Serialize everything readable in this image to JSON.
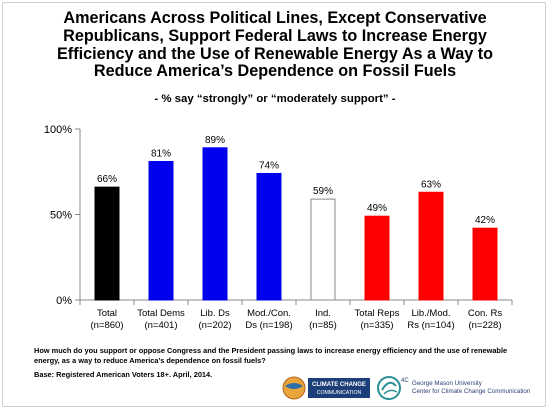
{
  "title_lines": [
    "Americans Across Political Lines, Except Conservative",
    "Republicans, Support Federal Laws to Increase Energy",
    "Efficiency and the Use of Renewable Energy As a Way to",
    "Reduce America’s Dependence on Fossil Fuels"
  ],
  "subtitle": "- % say “strongly” or “moderately support” -",
  "chart_data": {
    "type": "bar",
    "categories": [
      {
        "line1": "Total",
        "line2": "(n=860)"
      },
      {
        "line1": "Total Dems",
        "line2": "(n=401)"
      },
      {
        "line1": "Lib. Ds",
        "line2": "(n=202)"
      },
      {
        "line1": "Mod./Con.",
        "line2": "Ds (n=198)"
      },
      {
        "line1": "Ind.",
        "line2": "(n=85)"
      },
      {
        "line1": "Total Reps",
        "line2": "(n=335)"
      },
      {
        "line1": "Lib./Mod.",
        "line2": "Rs (n=104)"
      },
      {
        "line1": "Con. Rs",
        "line2": "(n=228)"
      }
    ],
    "values": [
      66,
      81,
      89,
      74,
      59,
      49,
      63,
      42
    ],
    "value_labels": [
      "66%",
      "81%",
      "89%",
      "74%",
      "59%",
      "49%",
      "63%",
      "42%"
    ],
    "bar_colors": [
      "#000000",
      "#0000ee",
      "#0000ee",
      "#0000ee",
      "#ffffff",
      "#ff0000",
      "#ff0000",
      "#ff0000"
    ],
    "yticks": [
      {
        "value": 0,
        "label": "0%"
      },
      {
        "value": 50,
        "label": "50%"
      },
      {
        "value": 100,
        "label": "100%"
      }
    ],
    "ylim": [
      0,
      100
    ],
    "grid": false,
    "legend": "none"
  },
  "footnote": {
    "question": "How much do you support or oppose Congress and the President passing laws to increase energy efficiency and the use of renewable energy, as a way to reduce America’s dependence on fossil fuels?",
    "base": "Base: Registered American Voters 18+. April, 2014."
  },
  "logos": {
    "left_line1": "CLIMATE CHANGE",
    "left_line2": "COMMUNICATION",
    "right_badge": "4C",
    "right_line1": "George Mason University",
    "right_line2": "Center for Climate Change Communication"
  }
}
